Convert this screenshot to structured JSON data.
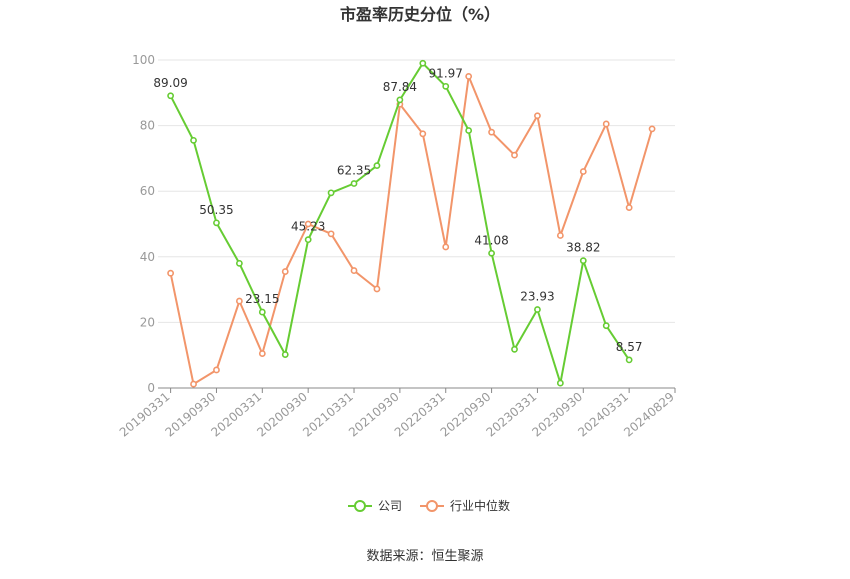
{
  "chart_data": {
    "type": "line",
    "title": "市盈率历史分位（%）",
    "xlabel": "",
    "ylabel": "",
    "ylim": [
      0,
      100
    ],
    "yticks": [
      0,
      20,
      40,
      60,
      80,
      100
    ],
    "grid": true,
    "x": [
      "20190331",
      "20190630",
      "20190930",
      "20191231",
      "20200331",
      "20200630",
      "20200930",
      "20201231",
      "20210331",
      "20210630",
      "20210930",
      "20211231",
      "20220331",
      "20220630",
      "20220930",
      "20221231",
      "20230331",
      "20230630",
      "20230930",
      "20231231",
      "20240331",
      "20240628",
      "20240829"
    ],
    "xtick_labels": [
      "20190331",
      "20190930",
      "20200331",
      "20200930",
      "20210331",
      "20210930",
      "20220331",
      "20220930",
      "20230331",
      "20230930",
      "20240331",
      "20240829"
    ],
    "series": [
      {
        "name": "公司",
        "color": "#66cc33",
        "values": [
          89.09,
          75.5,
          50.35,
          38.0,
          23.15,
          10.2,
          45.23,
          59.5,
          62.35,
          67.8,
          87.84,
          99.0,
          91.97,
          78.5,
          41.08,
          11.8,
          23.93,
          1.5,
          38.82,
          19.0,
          8.57,
          null,
          null
        ],
        "labels": {
          "0": "89.09",
          "2": "50.35",
          "4": "23.15",
          "6": "45.23",
          "8": "62.35",
          "10": "87.84",
          "12": "91.97",
          "14": "41.08",
          "16": "23.93",
          "18": "38.82",
          "20": "8.57"
        }
      },
      {
        "name": "行业中位数",
        "color": "#f2956a",
        "values": [
          35.0,
          1.2,
          5.5,
          26.5,
          10.5,
          35.5,
          50.0,
          47.0,
          35.8,
          30.2,
          86.5,
          77.5,
          43.0,
          95.0,
          78.0,
          71.0,
          83.0,
          46.5,
          66.0,
          80.5,
          55.0,
          79.0,
          null
        ]
      }
    ],
    "legend_position": "bottom",
    "source": "数据来源：恒生聚源"
  }
}
